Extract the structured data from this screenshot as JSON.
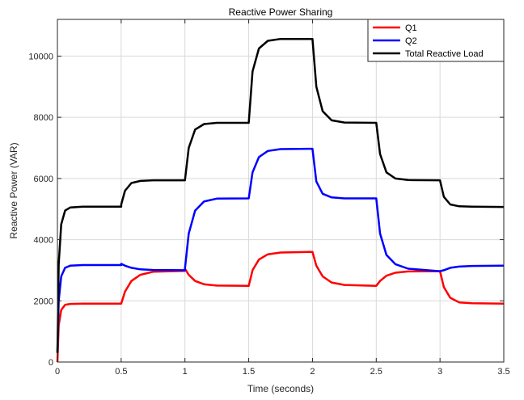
{
  "chart_data": {
    "type": "line",
    "title": "Reactive Power Sharing",
    "xlabel": "Time (seconds)",
    "ylabel": "Reactive Power (VAR)",
    "xlim": [
      0,
      3.5
    ],
    "ylim": [
      0,
      11200
    ],
    "xticks": [
      0,
      0.5,
      1,
      1.5,
      2,
      2.5,
      3,
      3.5
    ],
    "xtick_labels": [
      "0",
      "0.5",
      "1",
      "1.5",
      "2",
      "2.5",
      "3",
      "3.5"
    ],
    "yticks": [
      0,
      2000,
      4000,
      6000,
      8000,
      10000
    ],
    "ytick_labels": [
      "0",
      "2000",
      "4000",
      "6000",
      "8000",
      "10000"
    ],
    "grid": true,
    "legend_position": "top-right",
    "series": [
      {
        "name": "Q1",
        "color": "#ff0000",
        "x": [
          0,
          0.01,
          0.03,
          0.06,
          0.1,
          0.2,
          0.5,
          0.5,
          0.53,
          0.58,
          0.65,
          0.75,
          1.0,
          1.0,
          1.03,
          1.08,
          1.15,
          1.25,
          1.5,
          1.5,
          1.53,
          1.58,
          1.65,
          1.75,
          2.0,
          2.0,
          2.03,
          2.08,
          2.15,
          2.25,
          2.5,
          2.5,
          2.53,
          2.58,
          2.65,
          2.75,
          3.0,
          3.0,
          3.03,
          3.08,
          3.15,
          3.25,
          3.5
        ],
        "y": [
          0,
          1200,
          1700,
          1870,
          1900,
          1910,
          1910,
          1910,
          2300,
          2650,
          2850,
          2950,
          2980,
          3050,
          2850,
          2650,
          2540,
          2500,
          2490,
          2490,
          3000,
          3350,
          3520,
          3580,
          3600,
          3600,
          3150,
          2800,
          2600,
          2520,
          2490,
          2490,
          2650,
          2820,
          2920,
          2960,
          2970,
          2970,
          2450,
          2100,
          1950,
          1920,
          1910
        ]
      },
      {
        "name": "Q2",
        "color": "#0000ff",
        "x": [
          0,
          0.01,
          0.03,
          0.06,
          0.1,
          0.2,
          0.5,
          0.5,
          0.53,
          0.58,
          0.65,
          0.75,
          1.0,
          1.0,
          1.03,
          1.08,
          1.15,
          1.25,
          1.5,
          1.5,
          1.53,
          1.58,
          1.65,
          1.75,
          2.0,
          2.0,
          2.03,
          2.08,
          2.15,
          2.25,
          2.5,
          2.5,
          2.53,
          2.58,
          2.65,
          2.75,
          3.0,
          3.0,
          3.03,
          3.08,
          3.15,
          3.25,
          3.5
        ],
        "y": [
          300,
          2000,
          2800,
          3080,
          3150,
          3170,
          3170,
          3210,
          3150,
          3080,
          3030,
          3010,
          3000,
          3050,
          4200,
          4950,
          5250,
          5340,
          5350,
          5350,
          6200,
          6700,
          6900,
          6960,
          6970,
          6970,
          5900,
          5500,
          5380,
          5350,
          5350,
          5350,
          4200,
          3500,
          3200,
          3050,
          2970,
          2970,
          3000,
          3080,
          3120,
          3140,
          3150
        ]
      },
      {
        "name": "Total Reactive  Load",
        "color": "#000000",
        "x": [
          0,
          0.01,
          0.03,
          0.06,
          0.1,
          0.2,
          0.5,
          0.5,
          0.53,
          0.58,
          0.65,
          0.75,
          1.0,
          1.0,
          1.03,
          1.08,
          1.15,
          1.25,
          1.5,
          1.5,
          1.53,
          1.58,
          1.65,
          1.75,
          2.0,
          2.0,
          2.03,
          2.08,
          2.15,
          2.25,
          2.5,
          2.5,
          2.53,
          2.58,
          2.65,
          2.75,
          3.0,
          3.0,
          3.03,
          3.08,
          3.15,
          3.25,
          3.5
        ],
        "y": [
          300,
          3200,
          4500,
          4950,
          5050,
          5080,
          5080,
          5150,
          5600,
          5850,
          5920,
          5940,
          5940,
          5940,
          7000,
          7600,
          7780,
          7820,
          7820,
          7820,
          9500,
          10250,
          10500,
          10560,
          10560,
          10560,
          9000,
          8200,
          7900,
          7830,
          7820,
          7820,
          6800,
          6200,
          6000,
          5950,
          5940,
          5940,
          5400,
          5150,
          5090,
          5080,
          5070
        ]
      }
    ]
  }
}
